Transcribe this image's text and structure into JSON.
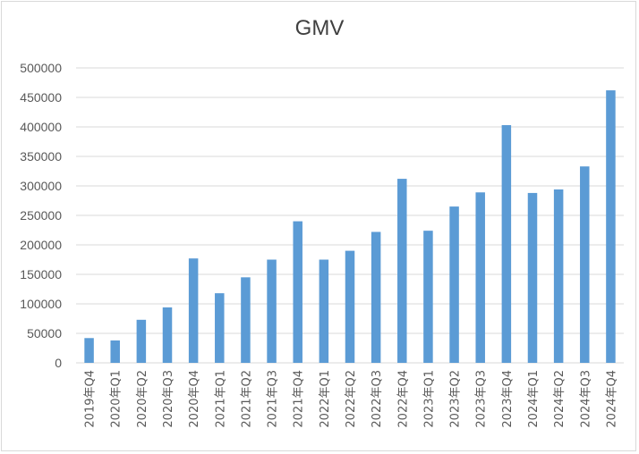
{
  "chart_data": {
    "type": "bar",
    "title": "GMV",
    "xlabel": "",
    "ylabel": "",
    "ylim": [
      0,
      500000
    ],
    "yticks": [
      0,
      50000,
      100000,
      150000,
      200000,
      250000,
      300000,
      350000,
      400000,
      450000,
      500000
    ],
    "grid": true,
    "legend": "none",
    "bar_color": "#5b9bd5",
    "categories": [
      "2019年Q4",
      "2020年Q1",
      "2020年Q2",
      "2020年Q3",
      "2020年Q4",
      "2021年Q1",
      "2021年Q2",
      "2021年Q3",
      "2021年Q4",
      "2022年Q1",
      "2022年Q2",
      "2022年Q3",
      "2022年Q4",
      "2023年Q1",
      "2023年Q2",
      "2023年Q3",
      "2023年Q4",
      "2024年Q1",
      "2024年Q2",
      "2024年Q3",
      "2024年Q4"
    ],
    "values": [
      42000,
      38000,
      73000,
      94000,
      177000,
      118000,
      145000,
      175000,
      240000,
      175000,
      190000,
      222000,
      312000,
      224000,
      265000,
      289000,
      403000,
      288000,
      294000,
      333000,
      462000
    ]
  }
}
